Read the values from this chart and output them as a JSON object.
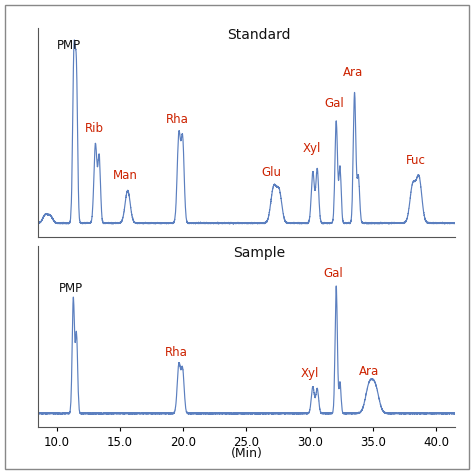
{
  "xlim": [
    8.5,
    41.5
  ],
  "xticks": [
    10.0,
    15.0,
    20.0,
    25.0,
    30.0,
    35.0,
    40.0
  ],
  "xlabel": "(Min)",
  "line_color": "#5B7FBF",
  "label_color_red": "#CC2200",
  "label_color_black": "#111111",
  "background": "#ffffff",
  "standard_label": "Standard",
  "sample_label": "Sample",
  "figsize": [
    4.74,
    4.74
  ],
  "dpi": 100
}
